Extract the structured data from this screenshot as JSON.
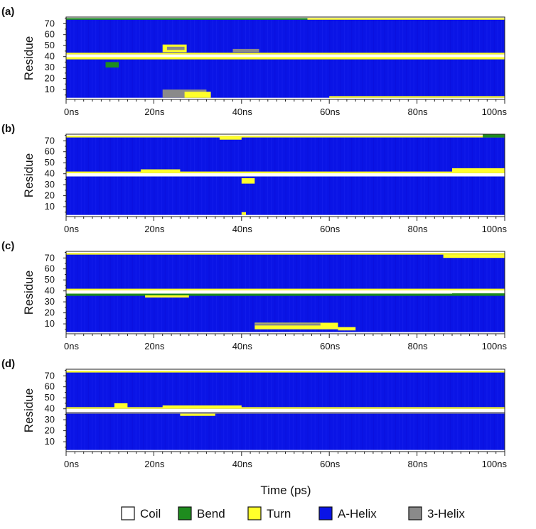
{
  "colors": {
    "coil": "#ffffff",
    "bend": "#1e8c1e",
    "turn": "#ffff2a",
    "a_helix": "#0a14e6",
    "three_helix": "#8a8a8a"
  },
  "chart_data": {
    "type": "heatmap",
    "xlabel": "Time (ps)",
    "ylabel": "Residue",
    "xlim": [
      0,
      100
    ],
    "ylim": [
      1,
      76
    ],
    "x_ticks": [
      "0ns",
      "20ns",
      "40ns",
      "60ns",
      "80ns",
      "100ns"
    ],
    "y_ticks": [
      "10",
      "20",
      "30",
      "40",
      "50",
      "60",
      "70"
    ],
    "legend": {
      "placement": "bottom",
      "entries": [
        {
          "key": "coil",
          "label": "Coil"
        },
        {
          "key": "bend",
          "label": "Bend"
        },
        {
          "key": "turn",
          "label": "Turn"
        },
        {
          "key": "a_helix",
          "label": "A-Helix"
        },
        {
          "key": "three_helix",
          "label": "3-Helix"
        }
      ]
    },
    "panels": [
      {
        "label": "(a)",
        "background": "a_helix",
        "regions": [
          {
            "x": [
              0,
              100
            ],
            "y": [
              39.5,
              42
            ],
            "state": "coil"
          },
          {
            "x": [
              0,
              100
            ],
            "y": [
              1,
              2.5
            ],
            "state": "coil"
          },
          {
            "x": [
              0,
              100
            ],
            "y": [
              75,
              76
            ],
            "state": "coil"
          },
          {
            "x": [
              0,
              100
            ],
            "y": [
              42,
              43.5
            ],
            "state": "turn"
          },
          {
            "x": [
              0,
              100
            ],
            "y": [
              37.5,
              39.5
            ],
            "state": "turn"
          },
          {
            "x": [
              55,
              100
            ],
            "y": [
              73.5,
              75
            ],
            "state": "turn"
          },
          {
            "x": [
              0,
              55
            ],
            "y": [
              73.5,
              75
            ],
            "state": "bend"
          },
          {
            "x": [
              22,
              27.5
            ],
            "y": [
              44,
              51
            ],
            "state": "turn"
          },
          {
            "x": [
              23,
              27
            ],
            "y": [
              46,
              49
            ],
            "state": "three_helix"
          },
          {
            "x": [
              9,
              12
            ],
            "y": [
              30,
              35
            ],
            "state": "bend"
          },
          {
            "x": [
              22,
              32
            ],
            "y": [
              2.5,
              10
            ],
            "state": "three_helix"
          },
          {
            "x": [
              27,
              33
            ],
            "y": [
              2.5,
              8
            ],
            "state": "turn"
          },
          {
            "x": [
              38,
              44
            ],
            "y": [
              44,
              47
            ],
            "state": "three_helix"
          },
          {
            "x": [
              60,
              100
            ],
            "y": [
              2.5,
              4
            ],
            "state": "turn"
          }
        ]
      },
      {
        "label": "(b)",
        "background": "a_helix",
        "regions": [
          {
            "x": [
              0,
              100
            ],
            "y": [
              37.5,
              40.5
            ],
            "state": "coil"
          },
          {
            "x": [
              0,
              100
            ],
            "y": [
              1,
              2.5
            ],
            "state": "coil"
          },
          {
            "x": [
              0,
              100
            ],
            "y": [
              74.5,
              76
            ],
            "state": "coil"
          },
          {
            "x": [
              0,
              100
            ],
            "y": [
              40.5,
              42
            ],
            "state": "turn"
          },
          {
            "x": [
              0,
              100
            ],
            "y": [
              73,
              74.5
            ],
            "state": "turn"
          },
          {
            "x": [
              17,
              26
            ],
            "y": [
              41,
              44
            ],
            "state": "turn"
          },
          {
            "x": [
              40,
              43
            ],
            "y": [
              31,
              36
            ],
            "state": "turn"
          },
          {
            "x": [
              88,
              100
            ],
            "y": [
              41,
              45
            ],
            "state": "turn"
          },
          {
            "x": [
              95,
              100
            ],
            "y": [
              73,
              76
            ],
            "state": "bend"
          },
          {
            "x": [
              35,
              40
            ],
            "y": [
              71,
              74
            ],
            "state": "turn"
          },
          {
            "x": [
              40,
              41
            ],
            "y": [
              2.5,
              5
            ],
            "state": "turn"
          }
        ]
      },
      {
        "label": "(c)",
        "background": "a_helix",
        "regions": [
          {
            "x": [
              0,
              100
            ],
            "y": [
              37.5,
              40.5
            ],
            "state": "coil"
          },
          {
            "x": [
              0,
              100
            ],
            "y": [
              1,
              2.5
            ],
            "state": "coil"
          },
          {
            "x": [
              0,
              100
            ],
            "y": [
              74.5,
              76
            ],
            "state": "coil"
          },
          {
            "x": [
              0,
              100
            ],
            "y": [
              40.5,
              42
            ],
            "state": "turn"
          },
          {
            "x": [
              0,
              100
            ],
            "y": [
              73,
              74.5
            ],
            "state": "turn"
          },
          {
            "x": [
              0,
              100
            ],
            "y": [
              35.5,
              37.5
            ],
            "state": "bend"
          },
          {
            "x": [
              43,
              62
            ],
            "y": [
              5,
              11
            ],
            "state": "turn"
          },
          {
            "x": [
              43,
              58
            ],
            "y": [
              8.5,
              10.5
            ],
            "state": "three_helix"
          },
          {
            "x": [
              62,
              66
            ],
            "y": [
              4,
              7
            ],
            "state": "turn"
          },
          {
            "x": [
              86,
              100
            ],
            "y": [
              70,
              73
            ],
            "state": "turn"
          },
          {
            "x": [
              88,
              100
            ],
            "y": [
              75,
              76
            ],
            "state": "coil"
          },
          {
            "x": [
              88,
              100
            ],
            "y": [
              37.2,
              37.8
            ],
            "state": "bend"
          },
          {
            "x": [
              18,
              28
            ],
            "y": [
              34,
              36
            ],
            "state": "turn"
          }
        ]
      },
      {
        "label": "(d)",
        "background": "a_helix",
        "regions": [
          {
            "x": [
              0,
              100
            ],
            "y": [
              37,
              40
            ],
            "state": "coil"
          },
          {
            "x": [
              0,
              100
            ],
            "y": [
              1,
              2.5
            ],
            "state": "coil"
          },
          {
            "x": [
              0,
              100
            ],
            "y": [
              74.5,
              76
            ],
            "state": "coil"
          },
          {
            "x": [
              0,
              100
            ],
            "y": [
              40,
              41.5
            ],
            "state": "turn"
          },
          {
            "x": [
              0,
              100
            ],
            "y": [
              73,
              74.5
            ],
            "state": "turn"
          },
          {
            "x": [
              11,
              14
            ],
            "y": [
              41,
              45
            ],
            "state": "turn"
          },
          {
            "x": [
              22,
              40
            ],
            "y": [
              41,
              43
            ],
            "state": "turn"
          },
          {
            "x": [
              0,
              100
            ],
            "y": [
              35.5,
              37
            ],
            "state": "three_helix"
          },
          {
            "x": [
              26,
              34
            ],
            "y": [
              33.5,
              35.5
            ],
            "state": "turn"
          }
        ]
      }
    ]
  }
}
